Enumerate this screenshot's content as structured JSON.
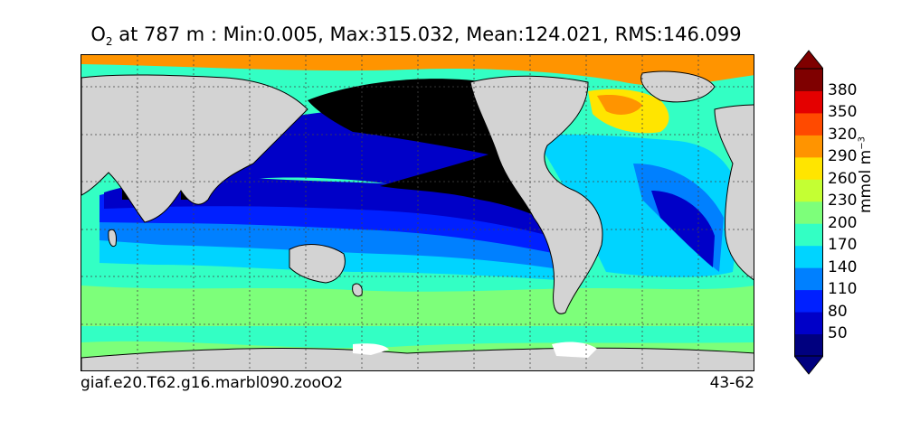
{
  "title": {
    "variable": "O",
    "subscript": "2",
    "text": " at 787 m : Min:0.005, Max:315.032, Mean:124.021, RMS:146.099"
  },
  "caption": {
    "case_name": "giaf.e20.T62.g16.marbl090.zooO2",
    "years": "43-62"
  },
  "colorbar": {
    "unit_main": "mmol m",
    "unit_exp": "−3",
    "levels": [
      "50",
      "80",
      "110",
      "140",
      "170",
      "200",
      "230",
      "260",
      "290",
      "320",
      "350",
      "380"
    ],
    "colors": [
      "#00007f",
      "#0000c8",
      "#0020ff",
      "#0080ff",
      "#00d4ff",
      "#33ffc4",
      "#7dff7a",
      "#c4ff33",
      "#ffe500",
      "#ff9400",
      "#ff4a00",
      "#e40000",
      "#7f0000"
    ]
  },
  "map_colors": {
    "land": "#d3d3d3",
    "ice": "#ffffff",
    "suboxic": "#000000"
  }
}
